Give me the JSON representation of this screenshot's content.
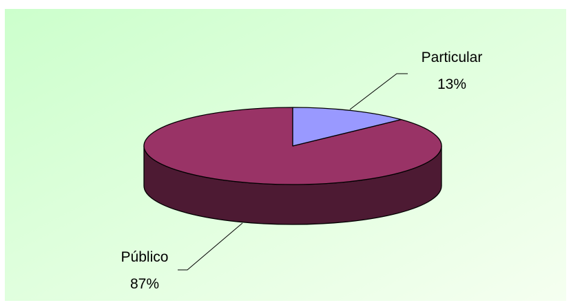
{
  "chart_data": {
    "type": "pie",
    "title": "",
    "three_d": true,
    "slices": [
      {
        "label": "Particular",
        "value_label": "13%",
        "value": 13,
        "color": "#9999ff",
        "side_color": "#4c4c80"
      },
      {
        "label": "Público",
        "value_label": "87%",
        "value": 87,
        "color": "#993366",
        "side_color": "#4d1a33"
      }
    ],
    "background_gradient": [
      "#ccffcc",
      "#f5fff0"
    ]
  }
}
